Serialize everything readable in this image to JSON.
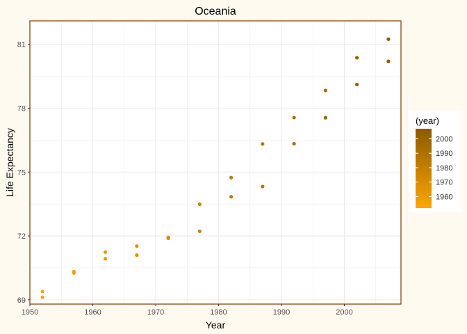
{
  "page": {
    "background": "#FFFAF0"
  },
  "chart_data": {
    "type": "scatter",
    "title": "Oceania",
    "xlabel": "Year",
    "ylabel": "Life Expectancy",
    "xlim": [
      1950,
      2009
    ],
    "ylim": [
      68.8,
      82.1
    ],
    "x_ticks": [
      1950,
      1960,
      1970,
      1980,
      1990,
      2000
    ],
    "y_ticks": [
      69,
      72,
      75,
      78,
      81
    ],
    "x_minor_ticks": [
      1955,
      1965,
      1975,
      1985,
      1995,
      2005
    ],
    "y_minor_ticks": [
      70.5,
      73.5,
      76.5,
      79.5
    ],
    "grid": true,
    "panel_background": "#FFFFFF",
    "panel_border_color": "#8B4513",
    "gridline_color": "#EBEBEB",
    "legend": {
      "title": "(year)",
      "position": "right",
      "breaks": [
        1960,
        1970,
        1980,
        1990,
        2000
      ],
      "range": [
        1952,
        2007
      ],
      "low_color": "#FFA500",
      "high_color": "#8B5A00"
    },
    "points": [
      {
        "x": 1952,
        "y": 69.39
      },
      {
        "x": 1952,
        "y": 69.12
      },
      {
        "x": 1957,
        "y": 70.33
      },
      {
        "x": 1957,
        "y": 70.26
      },
      {
        "x": 1962,
        "y": 71.24
      },
      {
        "x": 1962,
        "y": 70.93
      },
      {
        "x": 1967,
        "y": 71.52
      },
      {
        "x": 1967,
        "y": 71.1
      },
      {
        "x": 1972,
        "y": 71.93
      },
      {
        "x": 1972,
        "y": 71.89
      },
      {
        "x": 1977,
        "y": 73.49
      },
      {
        "x": 1977,
        "y": 72.22
      },
      {
        "x": 1982,
        "y": 74.74
      },
      {
        "x": 1982,
        "y": 73.84
      },
      {
        "x": 1987,
        "y": 76.32
      },
      {
        "x": 1987,
        "y": 74.32
      },
      {
        "x": 1992,
        "y": 77.56
      },
      {
        "x": 1992,
        "y": 76.33
      },
      {
        "x": 1997,
        "y": 78.83
      },
      {
        "x": 1997,
        "y": 77.55
      },
      {
        "x": 2002,
        "y": 80.37
      },
      {
        "x": 2002,
        "y": 79.11
      },
      {
        "x": 2007,
        "y": 81.24
      },
      {
        "x": 2007,
        "y": 80.2
      }
    ]
  }
}
